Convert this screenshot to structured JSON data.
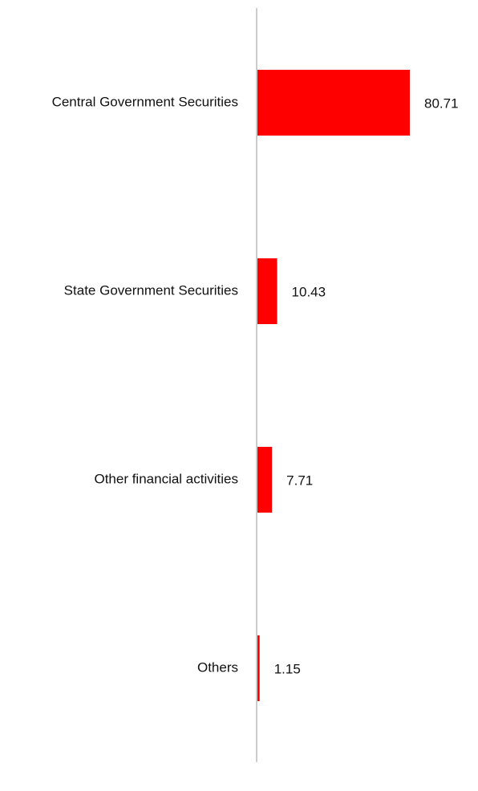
{
  "chart_data": {
    "type": "hbar",
    "categories": [
      "Central Government Securities",
      "State Government Securities",
      "Other financial activities",
      "Others"
    ],
    "values": [
      80.71,
      10.43,
      7.71,
      1.15
    ],
    "color": "#ff0000"
  }
}
